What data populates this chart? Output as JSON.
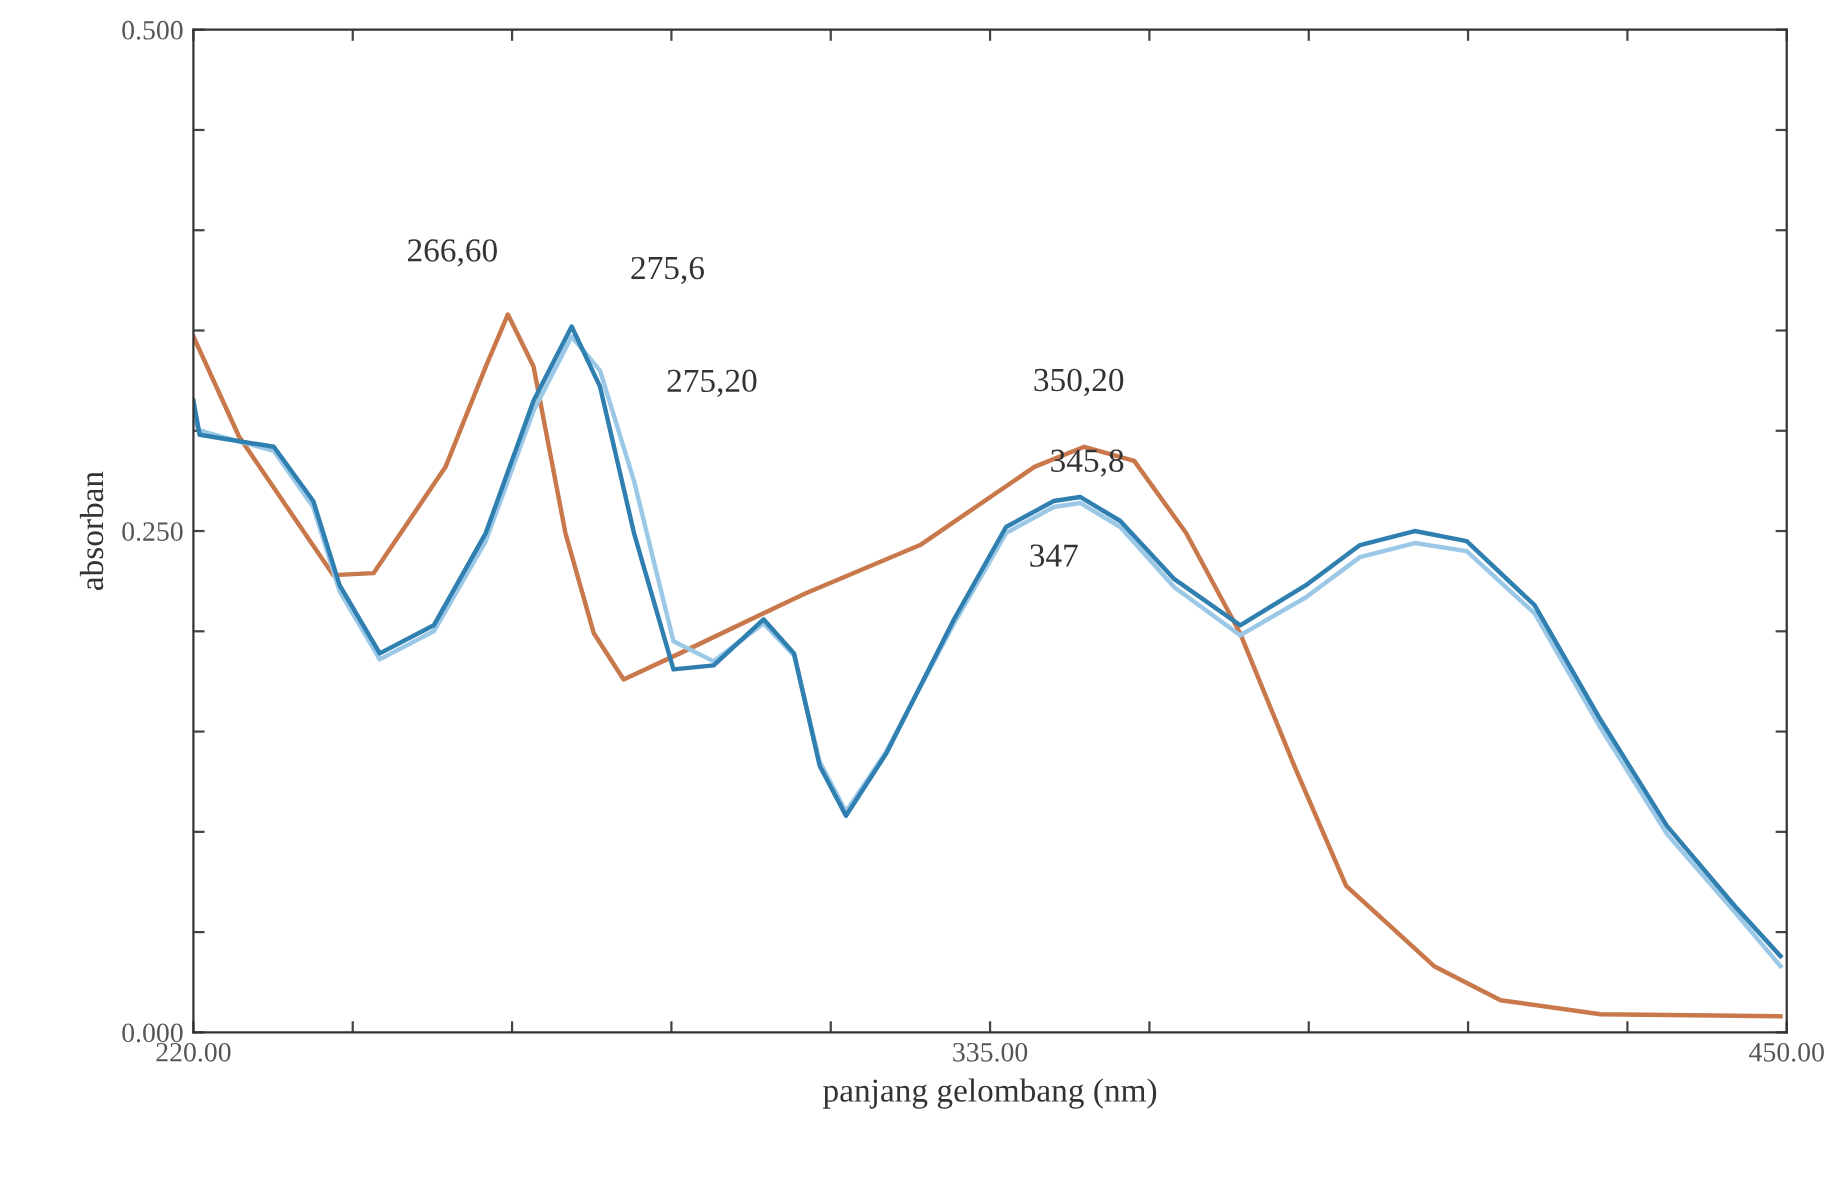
{
  "chart_data": {
    "type": "line",
    "xlabel": "panjang gelombang (nm)",
    "ylabel": "absorban",
    "xlim": [
      220,
      450
    ],
    "ylim": [
      0,
      0.5
    ],
    "xticks": [
      {
        "value": 220,
        "label": "220.00"
      },
      {
        "value": 243,
        "label": null
      },
      {
        "value": 266,
        "label": null
      },
      {
        "value": 289,
        "label": null
      },
      {
        "value": 312,
        "label": null
      },
      {
        "value": 335,
        "label": "335.00"
      },
      {
        "value": 358,
        "label": null
      },
      {
        "value": 381,
        "label": null
      },
      {
        "value": 404,
        "label": null
      },
      {
        "value": 427,
        "label": null
      },
      {
        "value": 450,
        "label": "450.00"
      }
    ],
    "yticks": [
      {
        "value": 0,
        "label": "0.000"
      },
      {
        "value": 0.05,
        "label": null
      },
      {
        "value": 0.1,
        "label": null
      },
      {
        "value": 0.15,
        "label": null
      },
      {
        "value": 0.2,
        "label": null
      },
      {
        "value": 0.25,
        "label": "0.250"
      },
      {
        "value": 0.3,
        "label": null
      },
      {
        "value": 0.35,
        "label": null
      },
      {
        "value": 0.4,
        "label": null
      },
      {
        "value": 0.45,
        "label": null
      },
      {
        "value": 0.5,
        "label": "0.500"
      }
    ],
    "grid": false,
    "legend": false,
    "marker": "none",
    "line_style": "solid",
    "series": [
      {
        "color": "#c8784a",
        "x": [
          220,
          226.6,
          240.2,
          246,
          256.4,
          262.2,
          265.4,
          269.1,
          273.7,
          277.8,
          282.1,
          290.2,
          302.3,
          308.4,
          324.9,
          341.4,
          348.6,
          355.8,
          363.3,
          371.1,
          378.9,
          386.4,
          399.1,
          408.7,
          423.1,
          449.1
        ],
        "values": [
          0.347,
          0.297,
          0.228,
          0.229,
          0.282,
          0.332,
          0.358,
          0.332,
          0.249,
          0.199,
          0.176,
          0.189,
          0.209,
          0.219,
          0.243,
          0.282,
          0.292,
          0.285,
          0.249,
          0.199,
          0.133,
          0.073,
          0.033,
          0.016,
          0.009,
          0.008
        ]
      },
      {
        "color": "#9cc8e8",
        "x": [
          220,
          220.9,
          231.6,
          237.3,
          241.1,
          246.9,
          254.7,
          262.2,
          269.1,
          274.6,
          278.7,
          283.6,
          289.3,
          295.1,
          302.3,
          306.7,
          310.4,
          314.2,
          320,
          329.8,
          337.3,
          344.2,
          348,
          353.8,
          361.6,
          371.1,
          380.6,
          388.4,
          396.3,
          403.8,
          413.6,
          423.1,
          432.7,
          442.5,
          449.1
        ],
        "values": [
          0.305,
          0.3,
          0.29,
          0.262,
          0.22,
          0.186,
          0.2,
          0.245,
          0.31,
          0.347,
          0.33,
          0.275,
          0.195,
          0.185,
          0.204,
          0.188,
          0.135,
          0.11,
          0.14,
          0.204,
          0.249,
          0.262,
          0.264,
          0.252,
          0.222,
          0.198,
          0.217,
          0.237,
          0.244,
          0.24,
          0.209,
          0.152,
          0.099,
          0.06,
          0.033
        ]
      },
      {
        "color": "#2f7fb0",
        "x": [
          220,
          220.9,
          231.6,
          237.3,
          241.1,
          246.9,
          254.7,
          262.2,
          269.1,
          274.6,
          278.7,
          283.6,
          289.3,
          295.1,
          302.3,
          306.7,
          310.4,
          314.2,
          320,
          329.8,
          337.3,
          344.2,
          348,
          353.8,
          361.6,
          371.1,
          380.6,
          388.4,
          396.3,
          403.8,
          413.6,
          423.1,
          432.7,
          442.5,
          449.1
        ],
        "values": [
          0.315,
          0.298,
          0.292,
          0.265,
          0.223,
          0.189,
          0.203,
          0.249,
          0.315,
          0.352,
          0.322,
          0.249,
          0.181,
          0.183,
          0.206,
          0.189,
          0.133,
          0.108,
          0.139,
          0.206,
          0.252,
          0.265,
          0.267,
          0.255,
          0.226,
          0.203,
          0.223,
          0.243,
          0.25,
          0.245,
          0.213,
          0.156,
          0.103,
          0.063,
          0.038
        ]
      }
    ],
    "annotations": [
      {
        "text": "266,60",
        "x": 266.6,
        "y": 0.358
      },
      {
        "text": "275,6",
        "x": 275.6,
        "y": 0.352
      },
      {
        "text": "275,20",
        "x": 275.2,
        "y": 0.347
      },
      {
        "text": "350,20",
        "x": 350.2,
        "y": 0.292
      },
      {
        "text": "345,8",
        "x": 345.8,
        "y": 0.267
      },
      {
        "text": "347",
        "x": 347,
        "y": 0.264
      }
    ]
  }
}
